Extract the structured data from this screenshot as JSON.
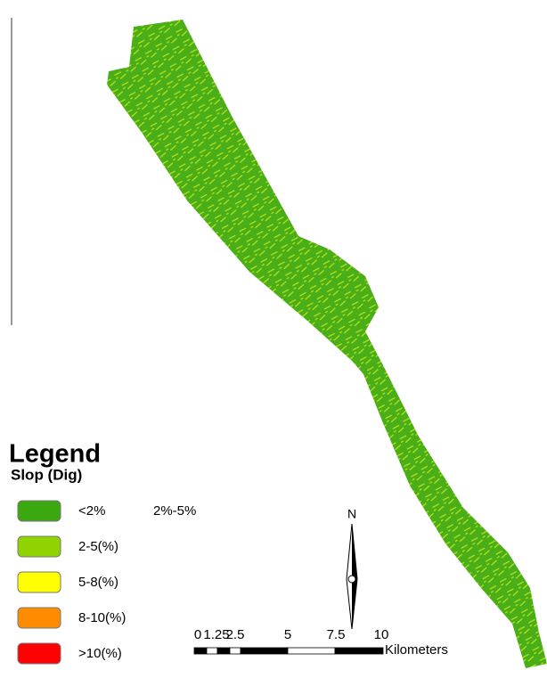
{
  "legend": {
    "title": "Legend",
    "subtitle": "Slop (Dig)",
    "items": [
      {
        "label": "<2%",
        "color": "#3ca80f"
      },
      {
        "label": "2-5(%)",
        "color": "#8fd400"
      },
      {
        "label": "5-8(%)",
        "color": "#ffff00"
      },
      {
        "label": "8-10(%)",
        "color": "#ff8c00"
      },
      {
        "label": ">10(%)",
        "color": "#ff0000"
      }
    ]
  },
  "note": "2%-5%",
  "north": "N",
  "scale_bar": {
    "labels": [
      "0",
      "1.25",
      "2.5",
      "5",
      "7.5",
      "10"
    ],
    "unit": "Kilometers"
  }
}
